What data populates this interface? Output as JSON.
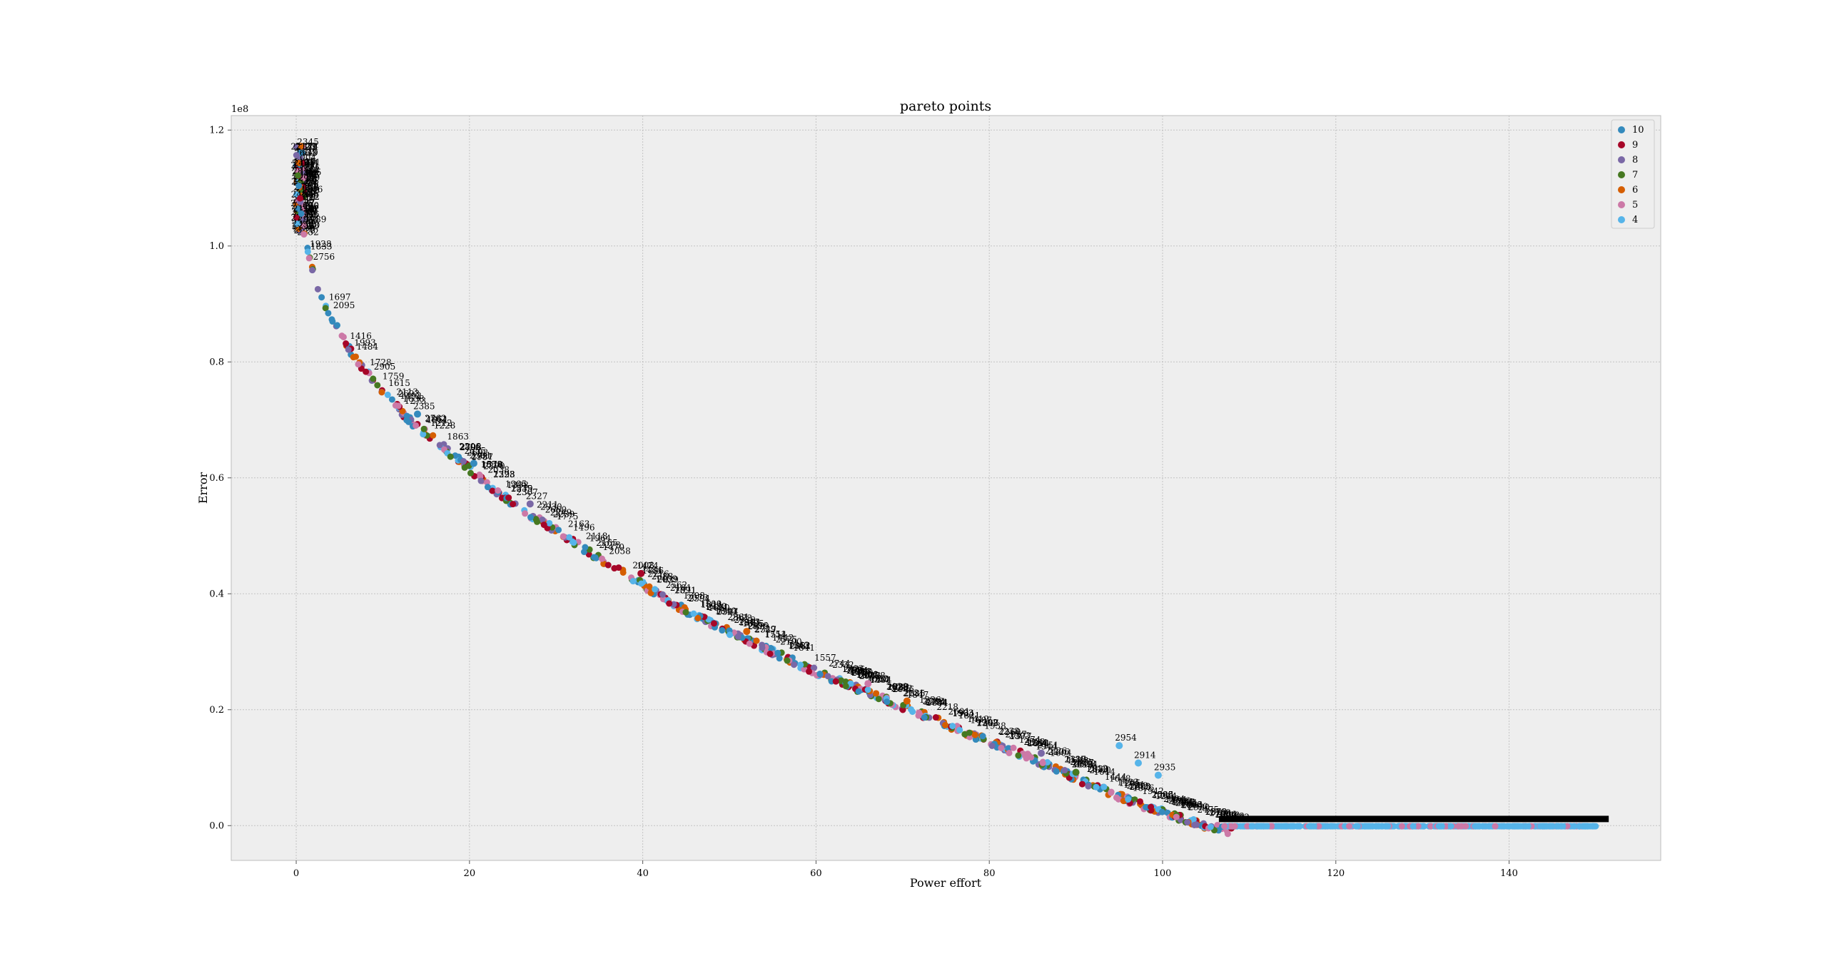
{
  "chart_data": {
    "type": "scatter",
    "title": "pareto points",
    "xlabel": "Power effort",
    "ylabel": "Error",
    "y_offset_label": "1e8",
    "xlim": [
      -7.5,
      157.5
    ],
    "ylim": [
      -0.06,
      1.225
    ],
    "x_ticks": [
      0,
      20,
      40,
      60,
      80,
      100,
      120,
      140
    ],
    "x_tick_labels": [
      "0",
      "20",
      "40",
      "60",
      "80",
      "100",
      "120",
      "140"
    ],
    "y_ticks": [
      0.0,
      0.2,
      0.4,
      0.6,
      0.8,
      1.0,
      1.2
    ],
    "y_tick_labels": [
      "0.0",
      "0.2",
      "0.4",
      "0.6",
      "0.8",
      "1.0",
      "1.2"
    ],
    "grid": true,
    "legend_position": "top-right",
    "series": [
      {
        "name": "10",
        "color": "#348abd"
      },
      {
        "name": "9",
        "color": "#a60628"
      },
      {
        "name": "8",
        "color": "#7a68a6"
      },
      {
        "name": "7",
        "color": "#467821"
      },
      {
        "name": "6",
        "color": "#d55e00"
      },
      {
        "name": "5",
        "color": "#cc79a7"
      },
      {
        "name": "4",
        "color": "#56b4e9"
      }
    ],
    "frontier": [
      [
        0,
        1.17
      ],
      [
        0.5,
        1.08
      ],
      [
        1,
        1.02
      ],
      [
        2,
        0.96
      ],
      [
        3,
        0.92
      ],
      [
        5,
        0.86
      ],
      [
        7,
        0.81
      ],
      [
        10,
        0.76
      ],
      [
        13,
        0.71
      ],
      [
        16,
        0.675
      ],
      [
        20,
        0.625
      ],
      [
        25,
        0.565
      ],
      [
        30,
        0.52
      ],
      [
        35,
        0.47
      ],
      [
        40,
        0.425
      ],
      [
        45,
        0.38
      ],
      [
        50,
        0.345
      ],
      [
        55,
        0.31
      ],
      [
        60,
        0.275
      ],
      [
        65,
        0.245
      ],
      [
        70,
        0.215
      ],
      [
        75,
        0.185
      ],
      [
        80,
        0.155
      ],
      [
        85,
        0.125
      ],
      [
        90,
        0.092
      ],
      [
        95,
        0.06
      ],
      [
        100,
        0.033
      ],
      [
        103,
        0.018
      ],
      [
        106,
        0.006
      ],
      [
        108,
        0.0
      ],
      [
        150,
        0.0
      ]
    ],
    "annotated_points": [
      {
        "label": "2954",
        "x": 95.0,
        "y": 0.138,
        "series": "4"
      },
      {
        "label": "2914",
        "x": 97.2,
        "y": 0.108,
        "series": "4"
      },
      {
        "label": "2935",
        "x": 99.5,
        "y": 0.087,
        "series": "4"
      },
      {
        "label": "1474",
        "x": 39.8,
        "y": 0.435,
        "series": "9"
      },
      {
        "label": "2381",
        "x": 20.5,
        "y": 0.625,
        "series": "10"
      },
      {
        "label": "2327",
        "x": 27.0,
        "y": 0.555,
        "series": "8"
      },
      {
        "label": "2385",
        "x": 14.0,
        "y": 0.71,
        "series": "10"
      },
      {
        "label": "2131",
        "x": 70.5,
        "y": 0.215,
        "series": "6"
      },
      {
        "label": "1298",
        "x": 66.0,
        "y": 0.245,
        "series": "5"
      },
      {
        "label": "2151",
        "x": 86.0,
        "y": 0.125,
        "series": "8"
      },
      {
        "label": "2410",
        "x": 90.0,
        "y": 0.092,
        "series": "7"
      },
      {
        "label": "1385",
        "x": 52.0,
        "y": 0.335,
        "series": "6"
      }
    ]
  }
}
